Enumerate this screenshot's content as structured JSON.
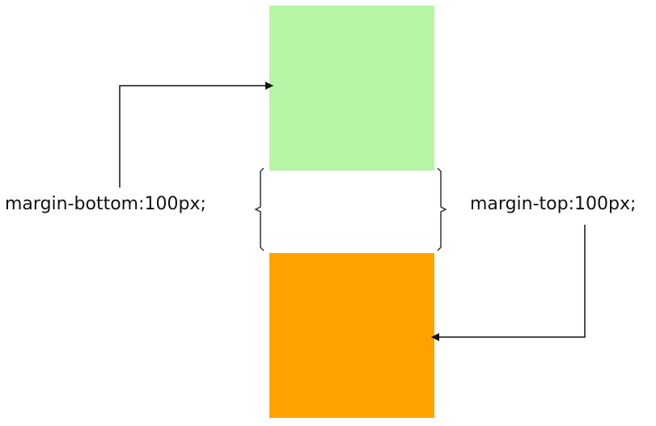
{
  "labels": {
    "left": "margin-bottom:100px;",
    "right": "margin-top:100px;"
  },
  "colors": {
    "top_box": "#b6f4a6",
    "bottom_box": "#ffa200",
    "lines": "#111111",
    "brackets": "#333333"
  }
}
